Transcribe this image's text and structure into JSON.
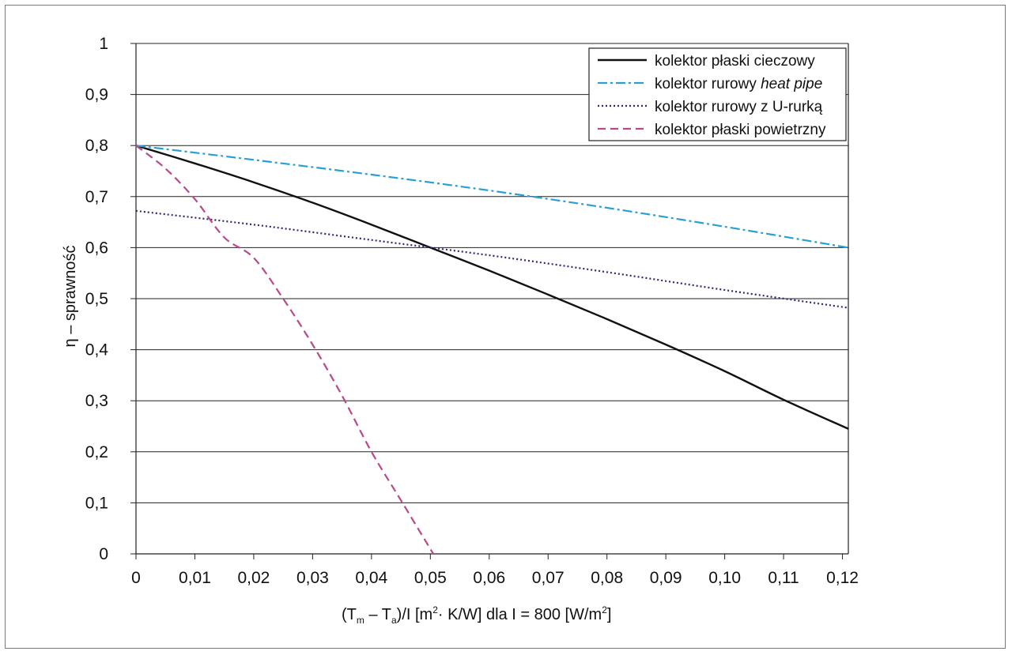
{
  "chart_data": {
    "type": "line",
    "xlabel": {
      "main": "(T",
      "sub_m": "m",
      "dash": " – T",
      "sub_a": "a",
      "rest1": ")/I [m",
      "sup1": "2",
      "rest2": "· K/W] dla I = 800 [W/m",
      "sup2": "2",
      "rest3": "]"
    },
    "ylabel": "η – sprawność",
    "xlim": [
      0,
      0.121
    ],
    "ylim": [
      0,
      1
    ],
    "x_ticks": [
      "0",
      "0,01",
      "0,02",
      "0,03",
      "0,04",
      "0,05",
      "0,06",
      "0,07",
      "0,08",
      "0,09",
      "0,10",
      "0,11",
      "0,12"
    ],
    "x_tick_values": [
      0,
      0.01,
      0.02,
      0.03,
      0.04,
      0.05,
      0.06,
      0.07,
      0.08,
      0.09,
      0.1,
      0.11,
      0.12
    ],
    "y_ticks": [
      "0",
      "0,1",
      "0,2",
      "0,3",
      "0,4",
      "0,5",
      "0,6",
      "0,7",
      "0,8",
      "0,9",
      "1"
    ],
    "y_tick_values": [
      0,
      0.1,
      0.2,
      0.3,
      0.4,
      0.5,
      0.6,
      0.7,
      0.8,
      0.9,
      1.0
    ],
    "grid": "horizontal",
    "legend_position": "top-right",
    "series": [
      {
        "name": "kolektor płaski cieczowy",
        "name_italic": "",
        "color": "#111111",
        "style": "solid",
        "x": [
          0,
          0.01,
          0.02,
          0.03,
          0.04,
          0.05,
          0.06,
          0.07,
          0.08,
          0.09,
          0.1,
          0.11,
          0.121
        ],
        "y": [
          0.8,
          0.765,
          0.728,
          0.688,
          0.645,
          0.6,
          0.555,
          0.508,
          0.46,
          0.41,
          0.358,
          0.302,
          0.245
        ]
      },
      {
        "name": "kolektor rurowy ",
        "name_italic": "heat pipe",
        "color": "#2a9fd4",
        "style": "dashdot",
        "x": [
          0,
          0.02,
          0.04,
          0.06,
          0.08,
          0.1,
          0.121
        ],
        "y": [
          0.8,
          0.772,
          0.743,
          0.712,
          0.678,
          0.641,
          0.6
        ]
      },
      {
        "name": "kolektor rurowy z U-rurką",
        "name_italic": "",
        "color": "#2a2a7a",
        "style": "dotted",
        "x": [
          0,
          0.02,
          0.04,
          0.06,
          0.08,
          0.1,
          0.121
        ],
        "y": [
          0.672,
          0.645,
          0.615,
          0.585,
          0.552,
          0.517,
          0.482
        ]
      },
      {
        "name": "kolektor płaski powietrzny",
        "name_italic": "",
        "color": "#b84a8a",
        "style": "dashed",
        "x": [
          0,
          0.005,
          0.01,
          0.015,
          0.02,
          0.025,
          0.03,
          0.035,
          0.04,
          0.045,
          0.0505
        ],
        "y": [
          0.8,
          0.755,
          0.695,
          0.62,
          0.58,
          0.5,
          0.41,
          0.31,
          0.2,
          0.105,
          0.0
        ]
      }
    ]
  }
}
